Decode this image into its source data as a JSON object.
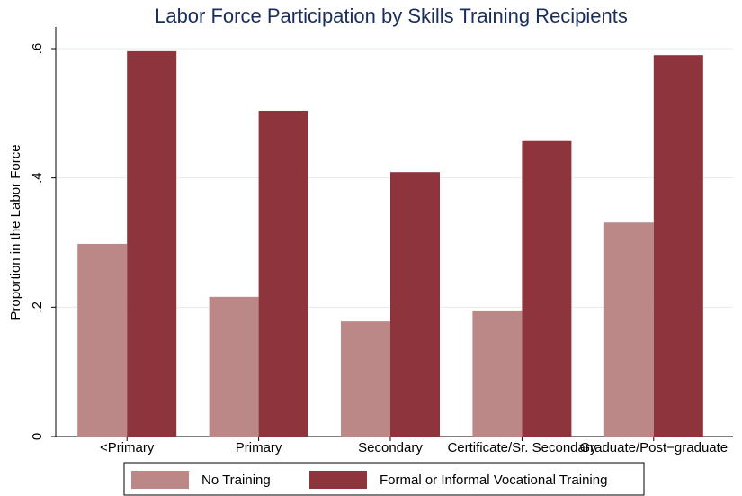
{
  "chart_data": {
    "type": "bar",
    "title": "Labor Force Participation by Skills Training Recipients",
    "y_label": "Proportion in the Labor Force",
    "categories": [
      "<Primary",
      "Primary",
      "Secondary",
      "Certificate/Sr. Secondary",
      "Graduate/Post−graduate"
    ],
    "series": [
      {
        "name": "No Training",
        "color": "#bc8787",
        "values": [
          0.298,
          0.216,
          0.178,
          0.195,
          0.331
        ]
      },
      {
        "name": "Formal or Informal Vocational Training",
        "color": "#8e343c",
        "values": [
          0.596,
          0.504,
          0.409,
          0.457,
          0.59
        ]
      }
    ],
    "ylim": [
      0,
      0.6
    ],
    "yticks": [
      0,
      {
        "value": 0.2,
        "label": ".2"
      },
      {
        "value": 0.4,
        "label": ".4"
      },
      {
        "value": 0.6,
        "label": ".6"
      }
    ],
    "grid": true,
    "legend": "bottom"
  }
}
